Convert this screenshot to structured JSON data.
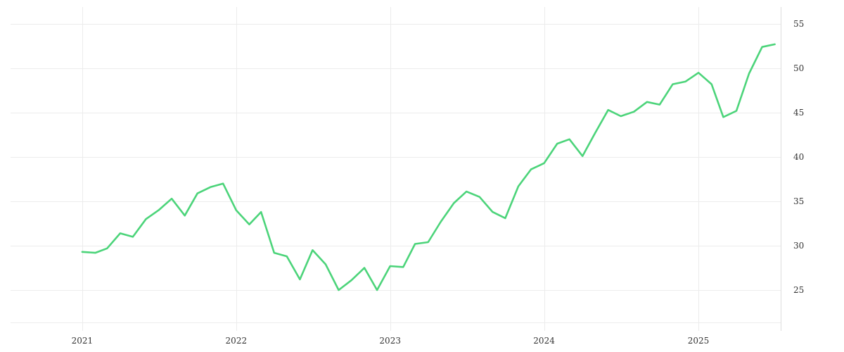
{
  "chart_data": {
    "type": "line",
    "title": "",
    "xlabel": "",
    "ylabel": "",
    "grid": true,
    "y_axis_side": "right",
    "xlim": [
      "2020-07-15",
      "2025-07-15"
    ],
    "ylim": [
      20.4,
      56.9
    ],
    "x_ticks": [
      "2021",
      "2022",
      "2023",
      "2024",
      "2025"
    ],
    "x_tick_dates": [
      "2021-01-01",
      "2022-01-01",
      "2023-01-01",
      "2024-01-01",
      "2025-01-01"
    ],
    "y_ticks": [
      25,
      30,
      35,
      40,
      45,
      50,
      55
    ],
    "series": [
      {
        "color": "#4cd47a",
        "x": [
          "2021-01-01",
          "2021-02-01",
          "2021-03-01",
          "2021-04-01",
          "2021-05-01",
          "2021-06-01",
          "2021-07-01",
          "2021-08-01",
          "2021-09-01",
          "2021-10-01",
          "2021-11-01",
          "2021-12-01",
          "2022-01-01",
          "2022-02-01",
          "2022-03-01",
          "2022-04-01",
          "2022-05-01",
          "2022-06-01",
          "2022-07-01",
          "2022-08-01",
          "2022-09-01",
          "2022-10-01",
          "2022-11-01",
          "2022-12-01",
          "2023-01-01",
          "2023-02-01",
          "2023-03-01",
          "2023-04-01",
          "2023-05-01",
          "2023-06-01",
          "2023-07-01",
          "2023-08-01",
          "2023-09-01",
          "2023-10-01",
          "2023-11-01",
          "2023-12-01",
          "2024-01-01",
          "2024-02-01",
          "2024-03-01",
          "2024-04-01",
          "2024-05-01",
          "2024-06-01",
          "2024-07-01",
          "2024-08-01",
          "2024-09-01",
          "2024-10-01",
          "2024-11-01",
          "2024-12-01",
          "2025-01-01",
          "2025-02-01",
          "2025-03-01",
          "2025-04-01",
          "2025-05-01",
          "2025-06-01",
          "2025-07-01"
        ],
        "y": [
          29.3,
          29.2,
          29.7,
          31.4,
          31.0,
          33.0,
          34.0,
          35.3,
          33.4,
          35.9,
          36.6,
          37.0,
          34.0,
          32.4,
          33.8,
          29.2,
          28.8,
          26.2,
          29.5,
          27.9,
          25.0,
          26.1,
          27.5,
          25.0,
          27.7,
          27.6,
          30.2,
          30.4,
          32.7,
          34.8,
          36.1,
          35.5,
          33.8,
          33.1,
          36.7,
          38.6,
          39.3,
          41.5,
          42.0,
          40.1,
          42.7,
          45.3,
          44.6,
          45.1,
          46.2,
          45.9,
          48.2,
          48.5,
          49.5,
          48.2,
          44.5,
          45.2,
          49.4,
          52.4,
          52.7
        ]
      }
    ]
  }
}
